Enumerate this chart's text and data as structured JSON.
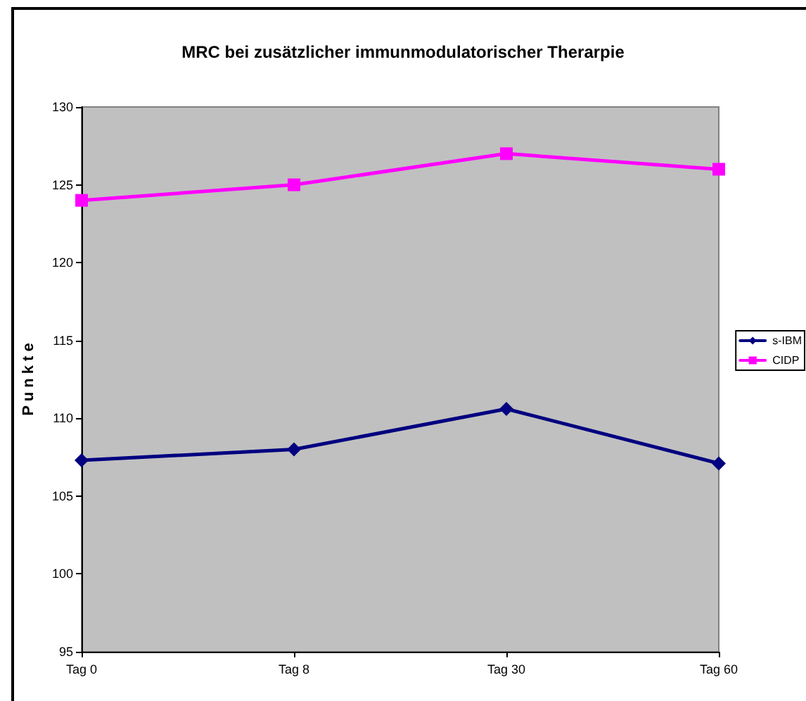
{
  "chart_data": {
    "type": "line",
    "title": "MRC bei zusätzlicher immunmodulatorischer Therarpie",
    "ylabel": "P u n k t e",
    "categories": [
      "Tag 0",
      "Tag 8",
      "Tag 30",
      "Tag 60"
    ],
    "series": [
      {
        "name": "s-IBM",
        "color": "#000080",
        "marker": "diamond",
        "values": [
          107.3,
          108.0,
          110.6,
          107.1
        ]
      },
      {
        "name": "CIDP",
        "color": "#ff00ff",
        "marker": "square",
        "values": [
          124,
          125,
          127,
          126
        ]
      }
    ],
    "ylim": [
      95,
      130
    ],
    "yticks": [
      95,
      100,
      105,
      110,
      115,
      120,
      125,
      130
    ],
    "grid": false,
    "legend": "right",
    "line_style": "solid"
  }
}
